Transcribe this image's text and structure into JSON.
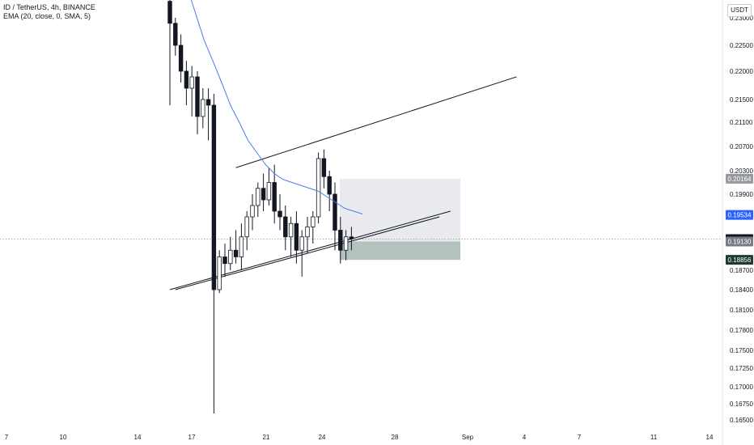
{
  "legend": {
    "symbol": "ID / TetherUS, 4h, BINANCE",
    "indicator": "EMA (20, close, 0, SMA, 5)"
  },
  "unit": "USDT",
  "chart_data": {
    "type": "candlestick",
    "symbol": "ID / TetherUS",
    "interval": "4h",
    "exchange": "BINANCE",
    "price_ticks": [
      "0.23000",
      "0.22500",
      "0.22000",
      "0.21500",
      "0.21100",
      "0.20700",
      "0.20300",
      "0.19900",
      "0.19500",
      "0.18700",
      "0.18400",
      "0.18100",
      "0.17800",
      "0.17500",
      "0.17250",
      "0.17000",
      "0.16750",
      "0.16500"
    ],
    "date_ticks": [
      "7",
      "10",
      "14",
      "17",
      "21",
      "24",
      "28",
      "Sep",
      "4",
      "7",
      "11",
      "14"
    ],
    "price_labels": [
      {
        "value": "0.20164",
        "color": "#9598a1"
      },
      {
        "value": "0.19534",
        "color": "#2962ff"
      },
      {
        "value": "0.19167",
        "color": "#131722"
      },
      {
        "value": "0.19130",
        "color": "#787b86"
      },
      {
        "value": "0.18856",
        "color": "#1e3a32"
      }
    ],
    "current_price": 0.19167,
    "position_box": {
      "entry": 0.1913,
      "stop": 0.18856,
      "target": 0.20164
    },
    "candles_approx": [
      {
        "o": 0.233,
        "h": 0.236,
        "l": 0.214,
        "c": 0.229
      },
      {
        "o": 0.229,
        "h": 0.23,
        "l": 0.223,
        "c": 0.225
      },
      {
        "o": 0.225,
        "h": 0.227,
        "l": 0.218,
        "c": 0.22
      },
      {
        "o": 0.22,
        "h": 0.222,
        "l": 0.214,
        "c": 0.217
      },
      {
        "o": 0.217,
        "h": 0.221,
        "l": 0.212,
        "c": 0.219
      },
      {
        "o": 0.219,
        "h": 0.22,
        "l": 0.209,
        "c": 0.212
      },
      {
        "o": 0.212,
        "h": 0.217,
        "l": 0.21,
        "c": 0.215
      },
      {
        "o": 0.215,
        "h": 0.217,
        "l": 0.208,
        "c": 0.214
      },
      {
        "o": 0.214,
        "h": 0.216,
        "l": 0.166,
        "c": 0.184
      },
      {
        "o": 0.184,
        "h": 0.19,
        "l": 0.1835,
        "c": 0.189
      },
      {
        "o": 0.189,
        "h": 0.191,
        "l": 0.186,
        "c": 0.188
      },
      {
        "o": 0.188,
        "h": 0.192,
        "l": 0.187,
        "c": 0.19
      },
      {
        "o": 0.19,
        "h": 0.193,
        "l": 0.188,
        "c": 0.189
      },
      {
        "o": 0.189,
        "h": 0.194,
        "l": 0.187,
        "c": 0.192
      },
      {
        "o": 0.192,
        "h": 0.196,
        "l": 0.19,
        "c": 0.195
      },
      {
        "o": 0.195,
        "h": 0.199,
        "l": 0.193,
        "c": 0.197
      },
      {
        "o": 0.197,
        "h": 0.201,
        "l": 0.195,
        "c": 0.2
      },
      {
        "o": 0.2,
        "h": 0.2025,
        "l": 0.196,
        "c": 0.198
      },
      {
        "o": 0.198,
        "h": 0.2035,
        "l": 0.197,
        "c": 0.201
      },
      {
        "o": 0.201,
        "h": 0.204,
        "l": 0.194,
        "c": 0.196
      },
      {
        "o": 0.196,
        "h": 0.199,
        "l": 0.193,
        "c": 0.195
      },
      {
        "o": 0.195,
        "h": 0.197,
        "l": 0.19,
        "c": 0.192
      },
      {
        "o": 0.192,
        "h": 0.195,
        "l": 0.189,
        "c": 0.194
      },
      {
        "o": 0.194,
        "h": 0.196,
        "l": 0.188,
        "c": 0.19
      },
      {
        "o": 0.19,
        "h": 0.193,
        "l": 0.186,
        "c": 0.192
      },
      {
        "o": 0.192,
        "h": 0.195,
        "l": 0.1895,
        "c": 0.1935
      },
      {
        "o": 0.1935,
        "h": 0.196,
        "l": 0.191,
        "c": 0.195
      },
      {
        "o": 0.195,
        "h": 0.206,
        "l": 0.194,
        "c": 0.205
      },
      {
        "o": 0.205,
        "h": 0.2065,
        "l": 0.2,
        "c": 0.202
      },
      {
        "o": 0.202,
        "h": 0.203,
        "l": 0.196,
        "c": 0.199
      },
      {
        "o": 0.199,
        "h": 0.201,
        "l": 0.19,
        "c": 0.193
      },
      {
        "o": 0.193,
        "h": 0.195,
        "l": 0.188,
        "c": 0.19
      },
      {
        "o": 0.19,
        "h": 0.193,
        "l": 0.1885,
        "c": 0.192
      },
      {
        "o": 0.192,
        "h": 0.1935,
        "l": 0.19,
        "c": 0.1917
      }
    ],
    "ema_approx": [
      0.236,
      0.231,
      0.226,
      0.222,
      0.218,
      0.214,
      0.211,
      0.208,
      0.206,
      0.204,
      0.2025,
      0.2015,
      0.201,
      0.2005,
      0.2,
      0.1995,
      0.1985,
      0.1975,
      0.1965,
      0.196,
      0.1955
    ],
    "trendlines_approx": [
      {
        "from": {
          "i": 0,
          "p": 0.238
        },
        "to": {
          "i": 44,
          "p": 0.2345
        }
      },
      {
        "from": {
          "i": 12,
          "p": 0.2035
        },
        "to": {
          "i": 63,
          "p": 0.219
        }
      },
      {
        "from": {
          "i": 0,
          "p": 0.184
        },
        "to": {
          "i": 51,
          "p": 0.196
        }
      },
      {
        "from": {
          "i": 1,
          "p": 0.184
        },
        "to": {
          "i": 49,
          "p": 0.195
        }
      }
    ]
  }
}
